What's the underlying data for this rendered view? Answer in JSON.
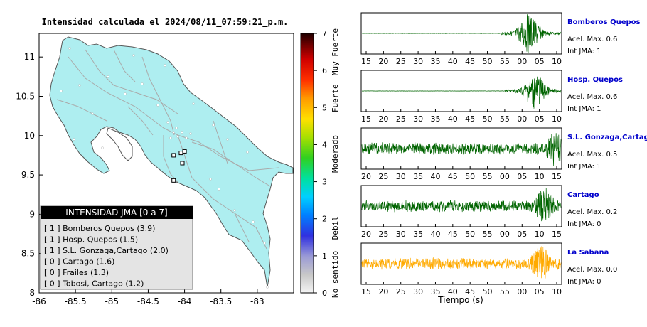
{
  "map": {
    "title": "Intensidad calculada el 2024/08/11_07:59:21_p.m.",
    "x_ticks": [
      "-86",
      "-85.5",
      "-85",
      "-84.5",
      "-84",
      "-83.5",
      "-83"
    ],
    "y_ticks": [
      "11",
      "10.5",
      "10",
      "9.5",
      "9",
      "8.5",
      "8"
    ],
    "xlim": [
      -86,
      -82.5
    ],
    "ylim": [
      8,
      11.3
    ],
    "colorbar": {
      "ticks": [
        "0",
        "1",
        "2",
        "3",
        "4",
        "5",
        "6",
        "7"
      ],
      "range": [
        0,
        7
      ],
      "labels": [
        "No sentido",
        "Debil",
        "Moderado",
        "Fuerte",
        "Muy Fuerte"
      ]
    },
    "legend": {
      "title": "INTENSIDAD JMA [0 a 7]",
      "items": [
        "[ 1 ]  Bomberos Quepos (3.9)",
        "[ 1 ]  Hosp. Quepos (1.5)",
        "[ 1 ]  S.L. Gonzaga,Cartago (2.0)",
        "[ 0 ]  Cartago (1.6)",
        "[ 0 ]  Frailes (1.3)",
        "[ 0 ]  Tobosi, Cartago (1.2)"
      ]
    }
  },
  "chart_data": [
    {
      "type": "line",
      "title": "Intensidad calculada el 2024/08/11_07:59:21_p.m.",
      "note": "map of Costa Rica with station markers",
      "stations": [
        {
          "lon": -84.05,
          "lat": 9.78
        },
        {
          "lon": -84.0,
          "lat": 9.8
        },
        {
          "lon": -84.15,
          "lat": 9.75
        },
        {
          "lon": -84.03,
          "lat": 9.65
        },
        {
          "lon": -84.15,
          "lat": 9.43
        }
      ]
    },
    {
      "type": "line",
      "name": "Bomberos Quepos",
      "x_ticks": [
        "15",
        "20",
        "25",
        "30",
        "35",
        "40",
        "45",
        "50",
        "55",
        "00",
        "05",
        "10"
      ],
      "color": "#006400",
      "quiet_until": 0.7,
      "burst_at": 0.84,
      "peak": 1.0
    },
    {
      "type": "line",
      "name": "Hosp. Quepos",
      "x_ticks": [
        "15",
        "20",
        "25",
        "30",
        "35",
        "40",
        "45",
        "50",
        "55",
        "00",
        "05",
        "10"
      ],
      "color": "#006400",
      "quiet_until": 0.72,
      "burst_at": 0.87,
      "peak": 0.9
    },
    {
      "type": "line",
      "name": "S.L. Gonzaga,Cartago",
      "x_ticks": [
        "20",
        "25",
        "30",
        "35",
        "40",
        "45",
        "50",
        "55",
        "00",
        "05",
        "10",
        "15"
      ],
      "color": "#006400",
      "quiet_until": 0.0,
      "burst_at": 0.97,
      "peak": 0.9
    },
    {
      "type": "line",
      "name": "Cartago",
      "x_ticks": [
        "20",
        "25",
        "30",
        "35",
        "40",
        "45",
        "50",
        "55",
        "00",
        "05",
        "10",
        "15"
      ],
      "color": "#006400",
      "quiet_until": 0.0,
      "burst_at": 0.92,
      "peak": 0.95
    },
    {
      "type": "line",
      "name": "La Sabana",
      "x_ticks": [
        "15",
        "20",
        "25",
        "30",
        "35",
        "40",
        "45",
        "50",
        "55",
        "00",
        "05",
        "10"
      ],
      "color": "#ffaa00",
      "quiet_until": 0.0,
      "burst_at": 0.9,
      "peak": 0.9
    }
  ],
  "traces": {
    "xlabel": "Tiempo (s)",
    "items": [
      {
        "name": "Bomberos Quepos",
        "acel": "Acel. Max. 0.6",
        "jma": "Int JMA: 1"
      },
      {
        "name": "Hosp. Quepos",
        "acel": "Acel. Max. 0.6",
        "jma": "Int JMA: 1"
      },
      {
        "name": "S.L. Gonzaga,Cartago",
        "acel": "Acel. Max. 0.5",
        "jma": "Int JMA: 1"
      },
      {
        "name": "Cartago",
        "acel": "Acel. Max. 0.2",
        "jma": "Int JMA: 0"
      },
      {
        "name": "La Sabana",
        "acel": "Acel. Max. 0.0",
        "jma": "Int JMA: 0"
      }
    ]
  }
}
